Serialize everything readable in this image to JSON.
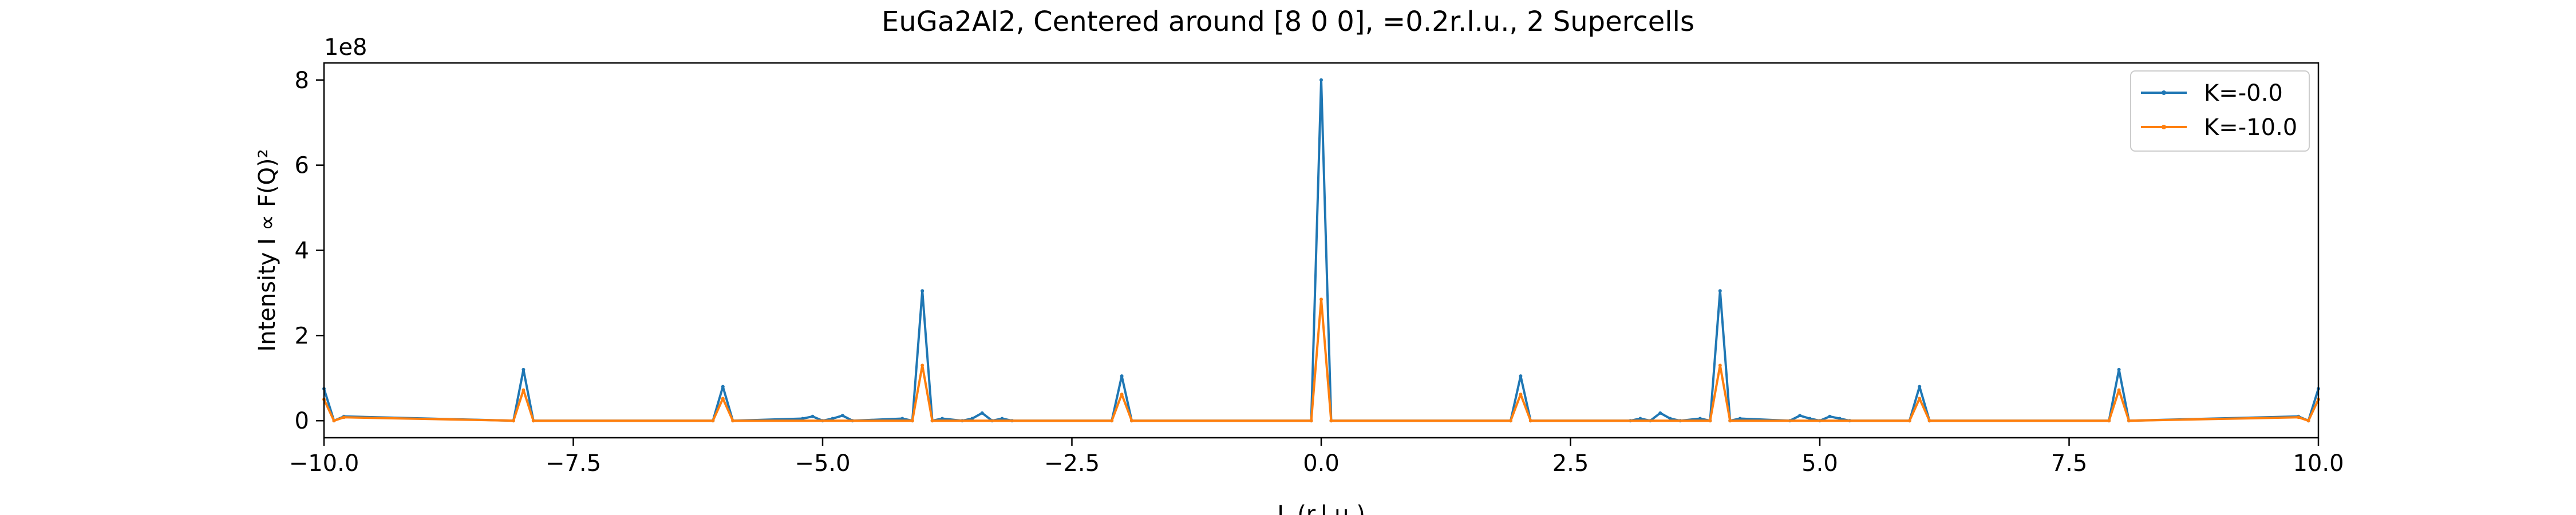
{
  "chart_data": {
    "type": "line",
    "title": "EuGa2Al2, Centered around [8 0 0], =0.2r.l.u., 2 Supercells",
    "xlabel": "L (r.l.u.)",
    "ylabel": "Intensity I ∝ F(Q)²",
    "y_offset_label": "1e8",
    "xlim": [
      -10,
      10
    ],
    "ylim": [
      -0.4,
      8.4
    ],
    "y_scale": 100000000,
    "x_ticks": [
      -10,
      -7.5,
      -5,
      -2.5,
      0,
      2.5,
      5,
      7.5,
      10
    ],
    "x_tick_labels": [
      "−10.0",
      "−7.5",
      "−5.0",
      "−2.5",
      "0.0",
      "2.5",
      "5.0",
      "7.5",
      "10.0"
    ],
    "y_ticks": [
      0,
      2,
      4,
      6,
      8
    ],
    "y_tick_labels": [
      "0",
      "2",
      "4",
      "6",
      "8"
    ],
    "legend_position": "top-right",
    "series": [
      {
        "name": "K=-0.0",
        "color": "#1f77b4",
        "points": [
          [
            -10.0,
            0.75
          ],
          [
            -9.9,
            0.0
          ],
          [
            -9.8,
            0.1
          ],
          [
            -8.1,
            0.0
          ],
          [
            -8.0,
            1.2
          ],
          [
            -7.9,
            0.0
          ],
          [
            -6.1,
            0.0
          ],
          [
            -6.0,
            0.8
          ],
          [
            -5.9,
            0.0
          ],
          [
            -5.2,
            0.05
          ],
          [
            -5.1,
            0.1
          ],
          [
            -5.0,
            0.0
          ],
          [
            -4.9,
            0.05
          ],
          [
            -4.8,
            0.12
          ],
          [
            -4.7,
            0.0
          ],
          [
            -4.2,
            0.05
          ],
          [
            -4.1,
            0.0
          ],
          [
            -4.0,
            3.05
          ],
          [
            -3.9,
            0.0
          ],
          [
            -3.8,
            0.05
          ],
          [
            -3.6,
            0.0
          ],
          [
            -3.5,
            0.05
          ],
          [
            -3.4,
            0.18
          ],
          [
            -3.3,
            0.0
          ],
          [
            -3.2,
            0.05
          ],
          [
            -3.1,
            0.0
          ],
          [
            -2.1,
            0.0
          ],
          [
            -2.0,
            1.05
          ],
          [
            -1.9,
            0.0
          ],
          [
            -0.1,
            0.0
          ],
          [
            0.0,
            8.0
          ],
          [
            0.1,
            0.0
          ],
          [
            1.9,
            0.0
          ],
          [
            2.0,
            1.05
          ],
          [
            2.1,
            0.0
          ],
          [
            3.1,
            0.0
          ],
          [
            3.2,
            0.05
          ],
          [
            3.3,
            0.0
          ],
          [
            3.4,
            0.18
          ],
          [
            3.5,
            0.05
          ],
          [
            3.6,
            0.0
          ],
          [
            3.8,
            0.05
          ],
          [
            3.9,
            0.0
          ],
          [
            4.0,
            3.05
          ],
          [
            4.1,
            0.0
          ],
          [
            4.2,
            0.05
          ],
          [
            4.7,
            0.0
          ],
          [
            4.8,
            0.12
          ],
          [
            4.9,
            0.05
          ],
          [
            5.0,
            0.0
          ],
          [
            5.1,
            0.1
          ],
          [
            5.2,
            0.05
          ],
          [
            5.3,
            0.0
          ],
          [
            5.9,
            0.0
          ],
          [
            6.0,
            0.8
          ],
          [
            6.1,
            0.0
          ],
          [
            7.9,
            0.0
          ],
          [
            8.0,
            1.2
          ],
          [
            8.1,
            0.0
          ],
          [
            9.8,
            0.1
          ],
          [
            9.9,
            0.0
          ],
          [
            10.0,
            0.75
          ]
        ]
      },
      {
        "name": "K=-10.0",
        "color": "#ff7f0e",
        "points": [
          [
            -10.0,
            0.5
          ],
          [
            -9.9,
            0.0
          ],
          [
            -9.8,
            0.08
          ],
          [
            -8.1,
            0.0
          ],
          [
            -8.0,
            0.72
          ],
          [
            -7.9,
            0.0
          ],
          [
            -6.1,
            0.0
          ],
          [
            -6.0,
            0.52
          ],
          [
            -5.9,
            0.0
          ],
          [
            -4.1,
            0.0
          ],
          [
            -4.0,
            1.3
          ],
          [
            -3.9,
            0.0
          ],
          [
            -2.1,
            0.0
          ],
          [
            -2.0,
            0.62
          ],
          [
            -1.9,
            0.0
          ],
          [
            -0.1,
            0.0
          ],
          [
            0.0,
            2.85
          ],
          [
            0.1,
            0.0
          ],
          [
            1.9,
            0.0
          ],
          [
            2.0,
            0.62
          ],
          [
            2.1,
            0.0
          ],
          [
            3.9,
            0.0
          ],
          [
            4.0,
            1.3
          ],
          [
            4.1,
            0.0
          ],
          [
            5.9,
            0.0
          ],
          [
            6.0,
            0.52
          ],
          [
            6.1,
            0.0
          ],
          [
            7.9,
            0.0
          ],
          [
            8.0,
            0.72
          ],
          [
            8.1,
            0.0
          ],
          [
            9.8,
            0.08
          ],
          [
            9.9,
            0.0
          ],
          [
            10.0,
            0.5
          ]
        ]
      }
    ]
  }
}
